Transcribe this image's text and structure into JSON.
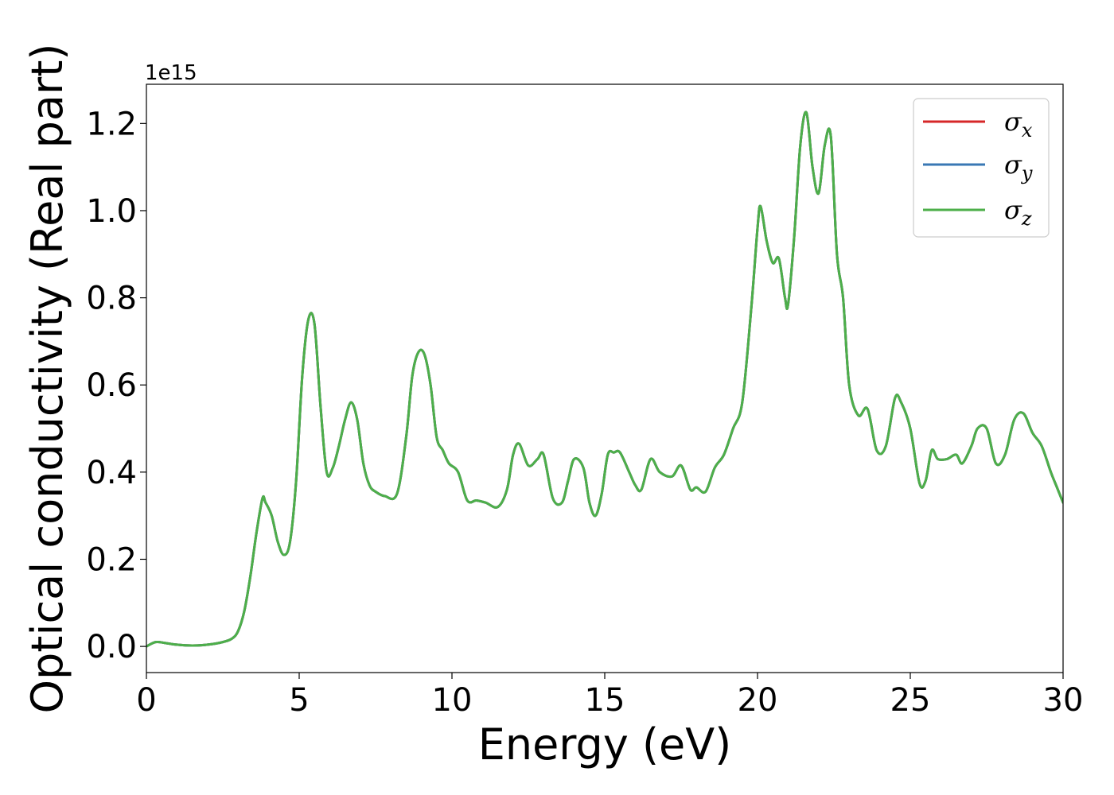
{
  "chart_data": {
    "type": "line",
    "title": "",
    "xlabel": "Energy (eV)",
    "ylabel": "Optical conductivity (Real part)",
    "y_offset_text": "1e15",
    "xlim": [
      0,
      30
    ],
    "ylim": [
      -0.06,
      1.29
    ],
    "xticks": [
      0,
      5,
      10,
      15,
      20,
      25,
      30
    ],
    "xtick_labels": [
      "0",
      "5",
      "10",
      "15",
      "20",
      "25",
      "30"
    ],
    "yticks": [
      0.0,
      0.2,
      0.4,
      0.6,
      0.8,
      1.0,
      1.2
    ],
    "ytick_labels": [
      "0.0",
      "0.2",
      "0.4",
      "0.6",
      "0.8",
      "1.0",
      "1.2"
    ],
    "grid": false,
    "legend_position": "top-right",
    "x": [
      0.0,
      0.3,
      0.6,
      1.0,
      1.5,
      2.0,
      2.5,
      2.8,
      3.0,
      3.2,
      3.4,
      3.6,
      3.8,
      3.9,
      4.1,
      4.3,
      4.5,
      4.7,
      4.9,
      5.1,
      5.3,
      5.5,
      5.7,
      5.9,
      6.1,
      6.3,
      6.5,
      6.7,
      6.9,
      7.1,
      7.3,
      7.5,
      7.8,
      8.2,
      8.5,
      8.7,
      8.9,
      9.1,
      9.3,
      9.5,
      9.7,
      9.9,
      10.2,
      10.5,
      10.8,
      11.1,
      11.5,
      11.8,
      12.0,
      12.2,
      12.5,
      12.8,
      13.0,
      13.3,
      13.6,
      13.8,
      14.0,
      14.3,
      14.5,
      14.7,
      14.9,
      15.1,
      15.3,
      15.5,
      15.8,
      16.0,
      16.2,
      16.5,
      16.8,
      17.2,
      17.5,
      17.8,
      18.0,
      18.3,
      18.6,
      18.9,
      19.2,
      19.5,
      19.8,
      20.0,
      20.1,
      20.3,
      20.5,
      20.7,
      20.9,
      21.0,
      21.2,
      21.4,
      21.6,
      21.8,
      22.0,
      22.2,
      22.4,
      22.6,
      22.8,
      23.0,
      23.3,
      23.6,
      23.9,
      24.2,
      24.5,
      24.7,
      25.0,
      25.3,
      25.5,
      25.7,
      25.9,
      26.2,
      26.5,
      26.7,
      27.0,
      27.2,
      27.5,
      27.8,
      28.1,
      28.4,
      28.7,
      29.0,
      29.3,
      29.6,
      29.8,
      30.0
    ],
    "series": [
      {
        "name": "σx",
        "color": "#d62728",
        "values": [
          0.0,
          0.01,
          0.008,
          0.004,
          0.002,
          0.004,
          0.01,
          0.018,
          0.035,
          0.08,
          0.16,
          0.26,
          0.34,
          0.33,
          0.3,
          0.24,
          0.21,
          0.24,
          0.38,
          0.62,
          0.75,
          0.74,
          0.55,
          0.4,
          0.41,
          0.46,
          0.52,
          0.56,
          0.52,
          0.42,
          0.37,
          0.355,
          0.345,
          0.35,
          0.48,
          0.62,
          0.675,
          0.67,
          0.6,
          0.48,
          0.45,
          0.42,
          0.4,
          0.335,
          0.335,
          0.33,
          0.32,
          0.36,
          0.44,
          0.465,
          0.415,
          0.43,
          0.44,
          0.34,
          0.33,
          0.38,
          0.43,
          0.41,
          0.33,
          0.3,
          0.35,
          0.44,
          0.445,
          0.445,
          0.4,
          0.37,
          0.36,
          0.43,
          0.4,
          0.39,
          0.415,
          0.36,
          0.365,
          0.355,
          0.41,
          0.44,
          0.5,
          0.56,
          0.78,
          0.96,
          1.01,
          0.93,
          0.88,
          0.89,
          0.8,
          0.785,
          0.94,
          1.15,
          1.225,
          1.1,
          1.04,
          1.15,
          1.17,
          0.9,
          0.8,
          0.6,
          0.53,
          0.545,
          0.45,
          0.46,
          0.57,
          0.56,
          0.5,
          0.375,
          0.38,
          0.45,
          0.43,
          0.43,
          0.44,
          0.42,
          0.46,
          0.5,
          0.5,
          0.42,
          0.44,
          0.52,
          0.535,
          0.49,
          0.46,
          0.4,
          0.365,
          0.33
        ]
      },
      {
        "name": "σy",
        "color": "#3a78b4",
        "values": [
          0.0,
          0.01,
          0.008,
          0.004,
          0.002,
          0.004,
          0.01,
          0.018,
          0.035,
          0.08,
          0.16,
          0.26,
          0.34,
          0.33,
          0.3,
          0.24,
          0.21,
          0.24,
          0.38,
          0.62,
          0.75,
          0.74,
          0.55,
          0.4,
          0.41,
          0.46,
          0.52,
          0.56,
          0.52,
          0.42,
          0.37,
          0.355,
          0.345,
          0.35,
          0.48,
          0.62,
          0.675,
          0.67,
          0.6,
          0.48,
          0.45,
          0.42,
          0.4,
          0.335,
          0.335,
          0.33,
          0.32,
          0.36,
          0.44,
          0.465,
          0.415,
          0.43,
          0.44,
          0.34,
          0.33,
          0.38,
          0.43,
          0.41,
          0.33,
          0.3,
          0.35,
          0.44,
          0.445,
          0.445,
          0.4,
          0.37,
          0.36,
          0.43,
          0.4,
          0.39,
          0.415,
          0.36,
          0.365,
          0.355,
          0.41,
          0.44,
          0.5,
          0.56,
          0.78,
          0.96,
          1.01,
          0.93,
          0.88,
          0.89,
          0.8,
          0.785,
          0.94,
          1.15,
          1.225,
          1.1,
          1.04,
          1.15,
          1.17,
          0.9,
          0.8,
          0.6,
          0.53,
          0.545,
          0.45,
          0.46,
          0.57,
          0.56,
          0.5,
          0.375,
          0.38,
          0.45,
          0.43,
          0.43,
          0.44,
          0.42,
          0.46,
          0.5,
          0.5,
          0.42,
          0.44,
          0.52,
          0.535,
          0.49,
          0.46,
          0.4,
          0.365,
          0.33
        ]
      },
      {
        "name": "σz",
        "color": "#4daf4a",
        "values": [
          0.0,
          0.01,
          0.008,
          0.004,
          0.002,
          0.004,
          0.01,
          0.018,
          0.035,
          0.08,
          0.16,
          0.26,
          0.34,
          0.33,
          0.3,
          0.24,
          0.21,
          0.24,
          0.38,
          0.62,
          0.75,
          0.74,
          0.55,
          0.4,
          0.41,
          0.46,
          0.52,
          0.56,
          0.52,
          0.42,
          0.37,
          0.355,
          0.345,
          0.35,
          0.48,
          0.62,
          0.675,
          0.67,
          0.6,
          0.48,
          0.45,
          0.42,
          0.4,
          0.335,
          0.335,
          0.33,
          0.32,
          0.36,
          0.44,
          0.465,
          0.415,
          0.43,
          0.44,
          0.34,
          0.33,
          0.38,
          0.43,
          0.41,
          0.33,
          0.3,
          0.35,
          0.44,
          0.445,
          0.445,
          0.4,
          0.37,
          0.36,
          0.43,
          0.4,
          0.39,
          0.415,
          0.36,
          0.365,
          0.355,
          0.41,
          0.44,
          0.5,
          0.56,
          0.78,
          0.96,
          1.01,
          0.93,
          0.88,
          0.89,
          0.8,
          0.785,
          0.94,
          1.15,
          1.225,
          1.1,
          1.04,
          1.15,
          1.17,
          0.9,
          0.8,
          0.6,
          0.53,
          0.545,
          0.45,
          0.46,
          0.57,
          0.56,
          0.5,
          0.375,
          0.38,
          0.45,
          0.43,
          0.43,
          0.44,
          0.42,
          0.46,
          0.5,
          0.5,
          0.42,
          0.44,
          0.52,
          0.535,
          0.49,
          0.46,
          0.4,
          0.365,
          0.33
        ]
      }
    ],
    "legend": [
      {
        "symbol": "σ",
        "sub": "x",
        "color": "#d62728"
      },
      {
        "symbol": "σ",
        "sub": "y",
        "color": "#3a78b4"
      },
      {
        "symbol": "σ",
        "sub": "z",
        "color": "#4daf4a"
      }
    ]
  }
}
